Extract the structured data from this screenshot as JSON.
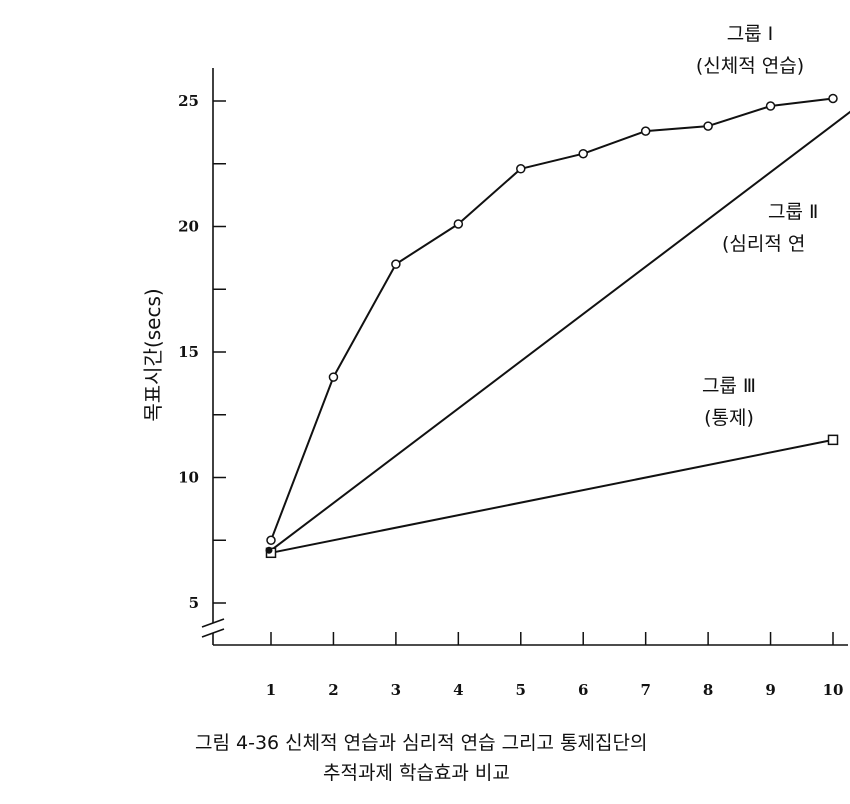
{
  "chart_data": {
    "type": "line",
    "x": [
      1,
      2,
      3,
      4,
      5,
      6,
      7,
      8,
      9,
      10
    ],
    "xticks": [
      "1",
      "2",
      "3",
      "4",
      "5",
      "6",
      "7",
      "8",
      "9",
      "10"
    ],
    "yticks": [
      "5",
      "10",
      "15",
      "20",
      "25"
    ],
    "ylabel": "목표시간(secs)",
    "xlim": [
      0,
      10.4
    ],
    "ylim": [
      3,
      26.5
    ],
    "y_axis_break": true,
    "grid": false,
    "series": [
      {
        "name_lines": [
          "그룹 I",
          "(신체적 연습)"
        ],
        "marker": "circle",
        "x": [
          1,
          2,
          3,
          4,
          5,
          6,
          7,
          8,
          9,
          10
        ],
        "values": [
          7.5,
          14.0,
          18.5,
          20.1,
          22.3,
          22.9,
          23.8,
          24.0,
          24.8,
          25.1
        ]
      },
      {
        "name_lines": [
          "그룹 Ⅱ",
          "(심리적 연"
        ],
        "marker": "none",
        "x": [
          1,
          10.4
        ],
        "values": [
          7.1,
          24.8
        ]
      },
      {
        "name_lines": [
          "그룹 Ⅲ",
          "(통제)"
        ],
        "marker": "square",
        "x": [
          1,
          10
        ],
        "values": [
          7.0,
          11.5
        ]
      }
    ]
  },
  "caption": {
    "line1": "그림 4-36 신체적 연습과 심리적 연습 그리고 통제집단의",
    "line2": "추적과제 학습효과 비교"
  }
}
